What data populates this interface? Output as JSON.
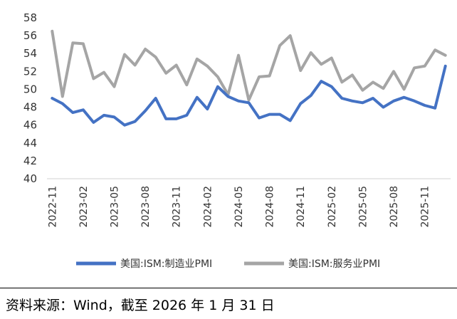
{
  "chart_data": {
    "type": "line",
    "x": [
      "2022-11",
      "2022-12",
      "2023-01",
      "2023-02",
      "2023-03",
      "2023-04",
      "2023-05",
      "2023-06",
      "2023-07",
      "2023-08",
      "2023-09",
      "2023-10",
      "2023-11",
      "2023-12",
      "2024-01",
      "2024-02",
      "2024-03",
      "2024-04",
      "2024-05",
      "2024-06",
      "2024-07",
      "2024-08",
      "2024-09",
      "2024-10",
      "2024-11",
      "2024-12",
      "2025-01",
      "2025-02",
      "2025-03",
      "2025-04",
      "2025-05",
      "2025-06",
      "2025-07",
      "2025-08",
      "2025-09",
      "2025-10",
      "2025-11",
      "2025-12",
      "2026-01"
    ],
    "tick_labels": [
      "2022-11",
      "2023-02",
      "2023-05",
      "2023-08",
      "2023-11",
      "2024-02",
      "2024-05",
      "2024-08",
      "2024-11",
      "2025-02",
      "2025-05",
      "2025-08",
      "2025-11"
    ],
    "yticks": [
      40,
      42,
      44,
      46,
      48,
      50,
      52,
      54,
      56,
      58
    ],
    "ylim": [
      40,
      58
    ],
    "grid": false,
    "legend_position": "bottom",
    "series": [
      {
        "name": "美国:ISM:制造业PMI",
        "color": "#4472C4",
        "values": [
          49.0,
          48.4,
          47.4,
          47.7,
          46.3,
          47.1,
          46.9,
          46.0,
          46.4,
          47.6,
          49.0,
          46.7,
          46.7,
          47.1,
          49.1,
          47.8,
          50.3,
          49.2,
          48.7,
          48.5,
          46.8,
          47.2,
          47.2,
          46.5,
          48.4,
          49.3,
          50.9,
          50.3,
          49.0,
          48.7,
          48.5,
          49.0,
          48.0,
          48.7,
          49.1,
          48.7,
          48.2,
          47.9,
          52.6
        ]
      },
      {
        "name": "美国:ISM:服务业PMI",
        "color": "#A5A5A5",
        "values": [
          56.5,
          49.2,
          55.2,
          55.1,
          51.2,
          51.9,
          50.3,
          53.9,
          52.7,
          54.5,
          53.6,
          51.8,
          52.7,
          50.5,
          53.4,
          52.6,
          51.4,
          49.4,
          53.8,
          48.8,
          51.4,
          51.5,
          54.9,
          56.0,
          52.1,
          54.1,
          52.8,
          53.5,
          50.8,
          51.6,
          49.9,
          50.8,
          50.1,
          52.0,
          50.0,
          52.4,
          52.6,
          54.4,
          53.8
        ]
      }
    ]
  },
  "source": "资料来源：Wind，截至 2026 年 1 月 31 日"
}
